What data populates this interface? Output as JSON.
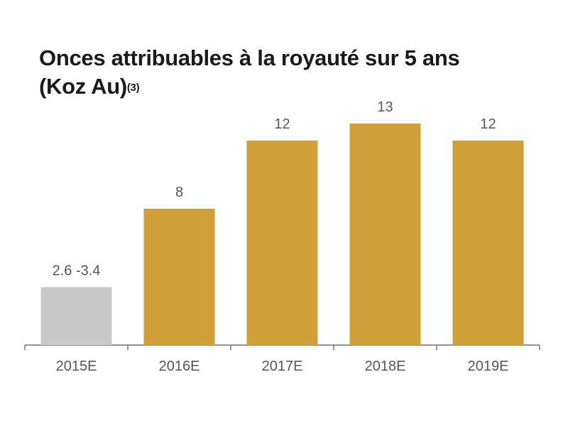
{
  "title": {
    "line1": "Onces attribuables à la royauté sur 5 ans",
    "line2": "(Koz Au)",
    "sup": "(3)"
  },
  "colors": {
    "estimate_bar": "#c8c8c8",
    "bar": "#cf9f38",
    "axis": "#555555",
    "label": "#555555"
  },
  "chart_data": {
    "type": "bar",
    "title": "Onces attribuables à la royauté sur 5 ans (Koz Au)(3)",
    "categories": [
      "2015E",
      "2016E",
      "2017E",
      "2018E",
      "2019E"
    ],
    "values": [
      3.4,
      8,
      12,
      13,
      12
    ],
    "value_labels": [
      "2.6 -3.4",
      "8",
      "12",
      "13",
      "12"
    ],
    "range_2015E": [
      2.6,
      3.4
    ],
    "bar_colors": [
      "#c8c8c8",
      "#cf9f38",
      "#cf9f38",
      "#cf9f38",
      "#cf9f38"
    ],
    "xlabel": "",
    "ylabel": "",
    "ylim": [
      0,
      13.5
    ],
    "grid": false,
    "legend": "none"
  }
}
